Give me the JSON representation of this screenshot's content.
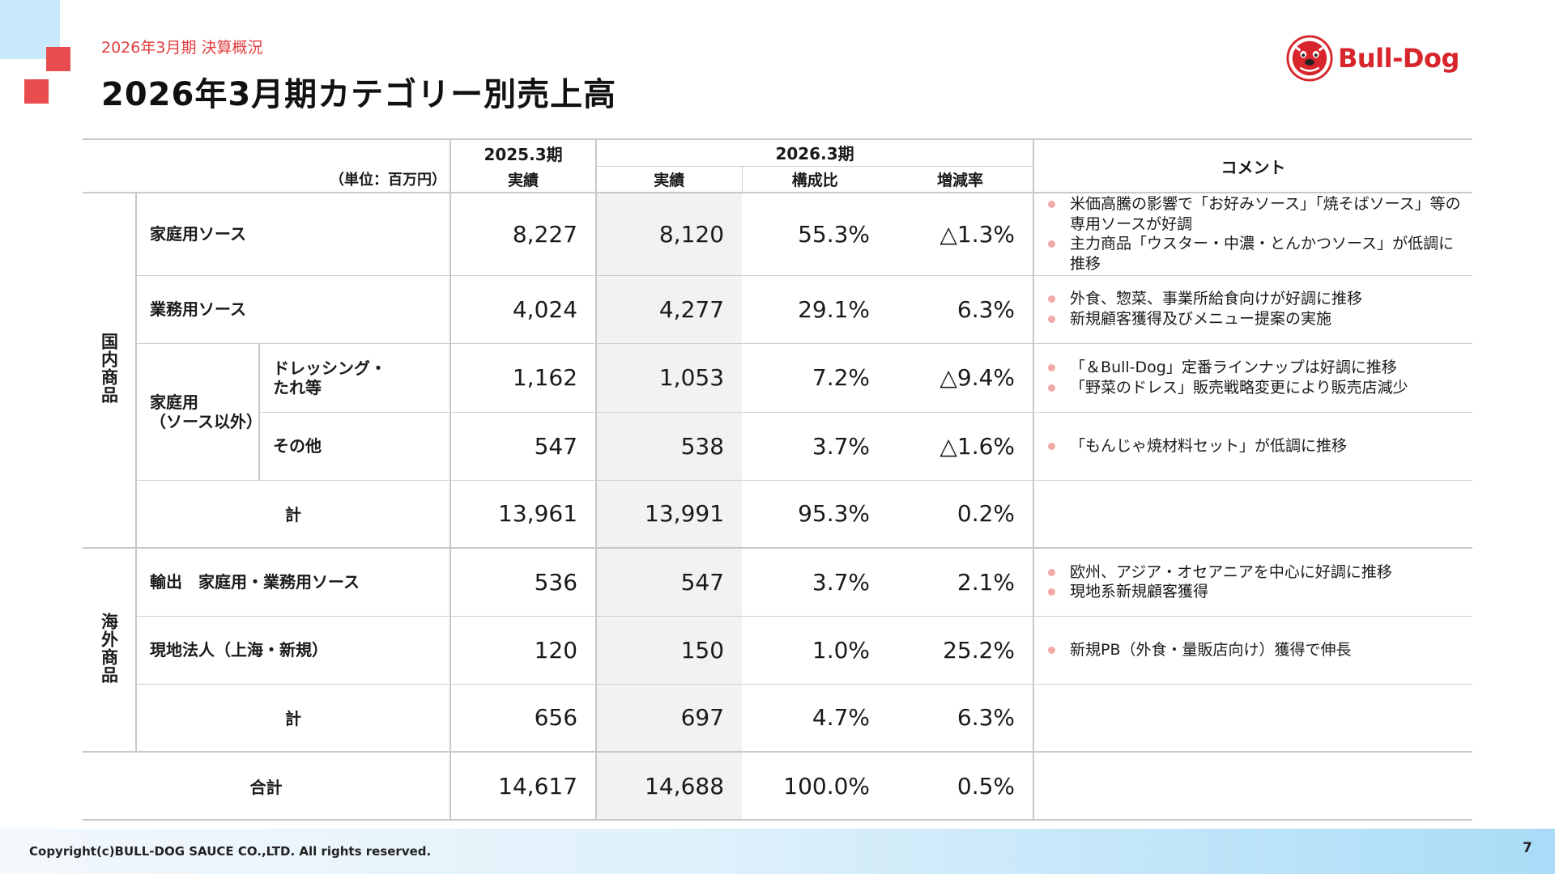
{
  "header": {
    "subtitle": "2026年3月期 決算概況",
    "title": "2026年3月期カテゴリー別売上高"
  },
  "logo": {
    "text": "Bull-Dog",
    "brand_color": "#d8252c"
  },
  "colors": {
    "accent_red": "#e84c4f",
    "accent_blue": "#c7e9fb",
    "bullet": "#f4a9a9"
  },
  "table": {
    "unit_label": "（単位：百万円）",
    "col_prev_period": "2025.3期",
    "col_cur_period": "2026.3期",
    "col_actual": "実績",
    "col_cur_actual": "実績",
    "col_ratio": "構成比",
    "col_change": "増減率",
    "col_comment": "コメント",
    "domestic_label": "国内商品",
    "overseas_label": "海外商品",
    "home_other_label": "家庭用\n（ソース以外）",
    "rows": [
      {
        "label": "家庭用ソース",
        "prev": "8,227",
        "cur": "8,120",
        "ratio": "55.3%",
        "change": "△1.3%",
        "comments": [
          "米価高騰の影響で「お好みソース」「焼そばソース」等の専用ソースが好調",
          "主力商品「ウスター・中濃・とんかつソース」が低調に推移"
        ]
      },
      {
        "label": "業務用ソース",
        "prev": "4,024",
        "cur": "4,277",
        "ratio": "29.1%",
        "change": "6.3%",
        "comments": [
          "外食、惣菜、事業所給食向けが好調に推移",
          "新規顧客獲得及びメニュー提案の実施"
        ]
      },
      {
        "label": "ドレッシング・\nたれ等",
        "prev": "1,162",
        "cur": "1,053",
        "ratio": "7.2%",
        "change": "△9.4%",
        "comments": [
          "「＆Bull-Dog」定番ラインナップは好調に推移",
          "「野菜のドレス」販売戦略変更により販売店減少"
        ]
      },
      {
        "label": "その他",
        "prev": "547",
        "cur": "538",
        "ratio": "3.7%",
        "change": "△1.6%",
        "comments": [
          "「もんじゃ焼材料セット」が低調に推移"
        ]
      },
      {
        "label": "計",
        "prev": "13,961",
        "cur": "13,991",
        "ratio": "95.3%",
        "change": "0.2%",
        "comments": []
      },
      {
        "label": "輸出　家庭用・業務用ソース",
        "prev": "536",
        "cur": "547",
        "ratio": "3.7%",
        "change": "2.1%",
        "comments": [
          "欧州、アジア・オセアニアを中心に好調に推移",
          "現地系新規顧客獲得"
        ]
      },
      {
        "label": "現地法人（上海・新規）",
        "prev": "120",
        "cur": "150",
        "ratio": "1.0%",
        "change": "25.2%",
        "comments": [
          "新規PB（外食・量販店向け）獲得で伸長"
        ]
      },
      {
        "label": "計",
        "prev": "656",
        "cur": "697",
        "ratio": "4.7%",
        "change": "6.3%",
        "comments": []
      },
      {
        "label": "合計",
        "prev": "14,617",
        "cur": "14,688",
        "ratio": "100.0%",
        "change": "0.5%",
        "comments": []
      }
    ]
  },
  "footer": {
    "copyright": "Copyright(c)BULL-DOG SAUCE CO.,LTD. All rights reserved.",
    "page_number": "7"
  }
}
